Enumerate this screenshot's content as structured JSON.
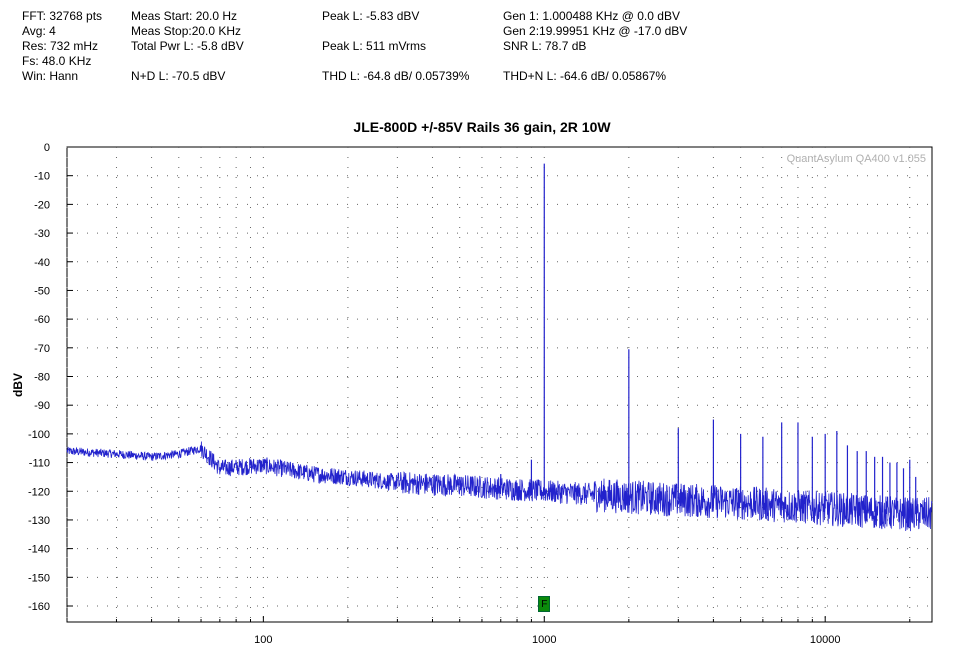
{
  "stats": {
    "fft": "FFT: 32768 pts",
    "avg": "Avg: 4",
    "res": "Res: 732 mHz",
    "fs": "Fs: 48.0 KHz",
    "win": "Win: Hann",
    "meas_start": "Meas Start: 20.0 Hz",
    "meas_stop": "Meas Stop:20.0 KHz",
    "total_pwr": "Total Pwr L: -5.8 dBV",
    "nd": "N+D L: -70.5 dBV",
    "peak_l_dbv": "Peak L: -5.83 dBV",
    "peak_l_vrms": "Peak L: 511 mVrms",
    "thd": "THD L: -64.8 dB/ 0.05739%",
    "gen1": "Gen 1: 1.000488 KHz @ 0.0  dBV",
    "gen2": "Gen 2:19.99951 KHz @ -17.0  dBV",
    "snr": "SNR L: 78.7 dB",
    "thdn": "THD+N L: -64.6 dB/ 0.05867%"
  },
  "watermark": "QuantAsylum QA400 v1.055",
  "marker_label": "F",
  "chart_data": {
    "type": "line",
    "title": "JLE-800D +/-85V Rails 36 gain, 2R 10W",
    "xlabel": "",
    "ylabel": "dBV",
    "x_scale": "log",
    "xlim": [
      20,
      24000
    ],
    "ylim": [
      -165,
      0
    ],
    "x_tick_labels": [
      "100",
      "1000",
      "10000"
    ],
    "y_tick_labels": [
      "0",
      "-10",
      "-20",
      "-30",
      "-40",
      "-50",
      "-60",
      "-70",
      "-80",
      "-90",
      "-100",
      "-110",
      "-120",
      "-130",
      "-140",
      "-150",
      "-160"
    ],
    "grid": true,
    "series_color": "#2222cc",
    "noise_floor": [
      [
        20,
        -106
      ],
      [
        30,
        -107
      ],
      [
        40,
        -108
      ],
      [
        50,
        -107
      ],
      [
        60,
        -105
      ],
      [
        70,
        -112
      ],
      [
        100,
        -111
      ],
      [
        150,
        -114
      ],
      [
        200,
        -115
      ],
      [
        300,
        -117
      ],
      [
        500,
        -118
      ],
      [
        700,
        -119
      ],
      [
        1000,
        -120
      ],
      [
        2000,
        -122
      ],
      [
        3000,
        -123
      ],
      [
        5000,
        -124
      ],
      [
        10000,
        -126
      ],
      [
        20000,
        -128
      ],
      [
        24000,
        -128
      ]
    ],
    "peaks": [
      {
        "x": 1000,
        "y": -5.8
      },
      {
        "x": 2000,
        "y": -70.5
      },
      {
        "x": 3000,
        "y": -98
      },
      {
        "x": 4000,
        "y": -95
      },
      {
        "x": 5000,
        "y": -100
      },
      {
        "x": 6000,
        "y": -101
      },
      {
        "x": 7000,
        "y": -96
      },
      {
        "x": 8000,
        "y": -96
      },
      {
        "x": 9000,
        "y": -101
      },
      {
        "x": 10000,
        "y": -100
      },
      {
        "x": 11000,
        "y": -99
      },
      {
        "x": 12000,
        "y": -104
      },
      {
        "x": 13000,
        "y": -106
      },
      {
        "x": 14000,
        "y": -106
      },
      {
        "x": 15000,
        "y": -108
      },
      {
        "x": 16000,
        "y": -108
      },
      {
        "x": 17000,
        "y": -110
      },
      {
        "x": 18000,
        "y": -110
      },
      {
        "x": 19000,
        "y": -112
      },
      {
        "x": 20000,
        "y": -109
      },
      {
        "x": 21000,
        "y": -115
      },
      {
        "x": 900,
        "y": -109
      },
      {
        "x": 700,
        "y": -114
      },
      {
        "x": 500,
        "y": -115
      }
    ],
    "marker_x": 1000
  }
}
